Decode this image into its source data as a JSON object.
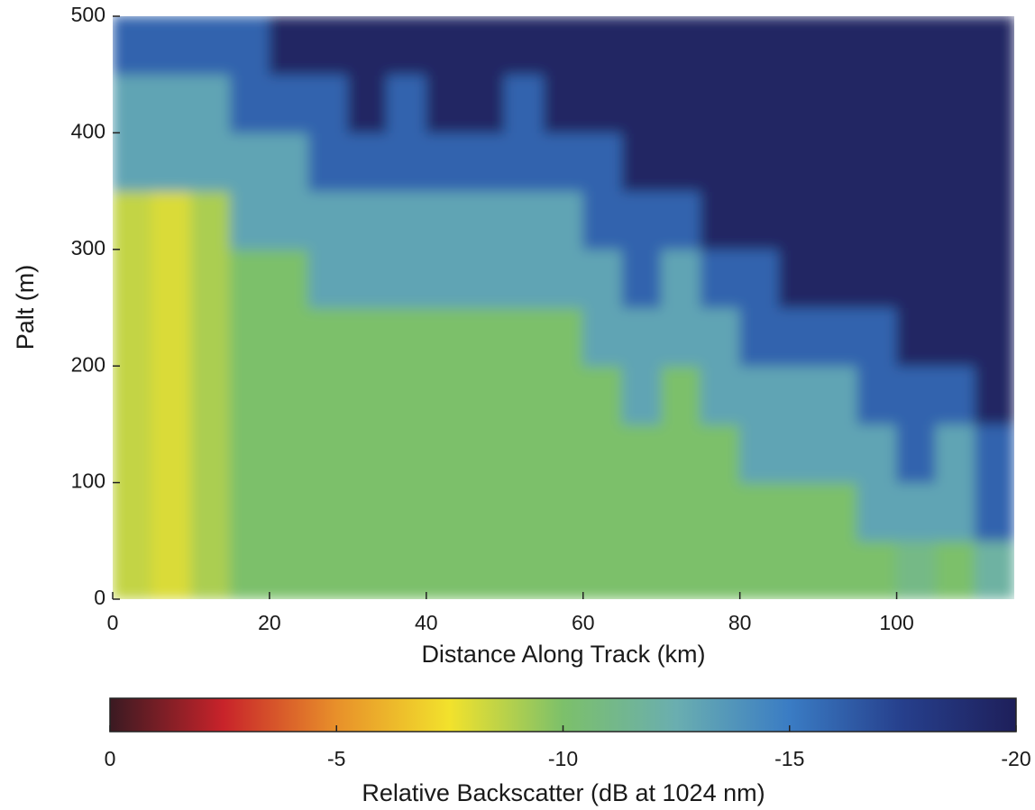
{
  "chart_data": {
    "type": "heatmap",
    "x_label": "Distance Along Track (km)",
    "y_label": "Palt (m)",
    "xlim": [
      0,
      115
    ],
    "ylim": [
      0,
      500
    ],
    "xticks": [
      0,
      20,
      40,
      60,
      80,
      100
    ],
    "yticks": [
      0,
      100,
      200,
      300,
      400,
      500
    ],
    "x": [
      0,
      5,
      10,
      15,
      20,
      25,
      30,
      35,
      40,
      45,
      50,
      55,
      60,
      65,
      70,
      75,
      80,
      85,
      90,
      95,
      100,
      105,
      110,
      115
    ],
    "y": [
      0,
      50,
      100,
      150,
      200,
      250,
      300,
      350,
      400,
      450,
      500
    ],
    "z": [
      [
        -8.5,
        -8,
        -9,
        -10,
        -10,
        -10,
        -10,
        -10,
        -10,
        -10,
        -10,
        -10,
        -10,
        -10,
        -10,
        -10,
        -10,
        -10,
        -10,
        -10,
        -11,
        -10,
        -12
      ],
      [
        -8.5,
        -8,
        -9,
        -10,
        -10,
        -10,
        -10,
        -10,
        -10,
        -10,
        -10,
        -10,
        -10,
        -10,
        -10,
        -10,
        -10,
        -10,
        -10,
        -13,
        -13,
        -13,
        -16
      ],
      [
        -8.5,
        -8,
        -9,
        -10,
        -10,
        -10,
        -10,
        -10,
        -10,
        -10,
        -10,
        -10,
        -10,
        -10,
        -10,
        -10,
        -13,
        -13,
        -13,
        -13,
        -16,
        -13,
        -16
      ],
      [
        -8.5,
        -8,
        -9,
        -10,
        -10,
        -10,
        -10,
        -10,
        -10,
        -10,
        -10,
        -10,
        -10,
        -13,
        -10,
        -13,
        -13,
        -13,
        -13,
        -16,
        -16,
        -16,
        -19.5
      ],
      [
        -8.5,
        -8,
        -9,
        -10,
        -10,
        -10,
        -10,
        -10,
        -10,
        -10,
        -10,
        -10,
        -13,
        -13,
        -13,
        -13,
        -16,
        -16,
        -16,
        -16,
        -19.5,
        -19.5,
        -19.5
      ],
      [
        -8.5,
        -8,
        -9,
        -10,
        -10,
        -13,
        -13,
        -13,
        -13,
        -13,
        -13,
        -13,
        -13,
        -16,
        -13,
        -16,
        -16,
        -19.5,
        -19.5,
        -19.5,
        -19.5,
        -19.5,
        -19.5
      ],
      [
        -8.5,
        -8,
        -9,
        -13,
        -13,
        -13,
        -13,
        -13,
        -13,
        -13,
        -13,
        -13,
        -16,
        -16,
        -16,
        -19.5,
        -19.5,
        -19.5,
        -19.5,
        -19.5,
        -19.5,
        -19.5,
        -19.5
      ],
      [
        -13,
        -13,
        -13,
        -13,
        -13,
        -16,
        -16,
        -16,
        -16,
        -16,
        -16,
        -16,
        -16,
        -19.5,
        -19.5,
        -19.5,
        -19.5,
        -19.5,
        -19.5,
        -19.5,
        -19.5,
        -19.5,
        -19.5
      ],
      [
        -13,
        -13,
        -13,
        -16,
        -16,
        -16,
        -19.5,
        -16,
        -19.5,
        -19.5,
        -16,
        -19.5,
        -19.5,
        -19.5,
        -19.5,
        -19.5,
        -19.5,
        -19.5,
        -19.5,
        -19.5,
        -19.5,
        -19.5,
        -19.5
      ],
      [
        -16,
        -16,
        -16,
        -16,
        -19.5,
        -19.5,
        -19.5,
        -19.5,
        -19.5,
        -19.5,
        -19.5,
        -19.5,
        -19.5,
        -19.5,
        -19.5,
        -19.5,
        -19.5,
        -19.5,
        -19.5,
        -19.5,
        -19.5,
        -19.5,
        -19.5
      ]
    ],
    "colorbar": {
      "label": "Relative Backscatter (dB at 1024 nm)",
      "lim": [
        0,
        -20
      ],
      "ticks": [
        0,
        -5,
        -10,
        -15,
        -20
      ],
      "colors": [
        "#3a1a22",
        "#c8232a",
        "#e8902a",
        "#f2e22c",
        "#7cc06a",
        "#6aaeb0",
        "#3a7cc4",
        "#263f8c",
        "#1e1f5a"
      ]
    }
  }
}
